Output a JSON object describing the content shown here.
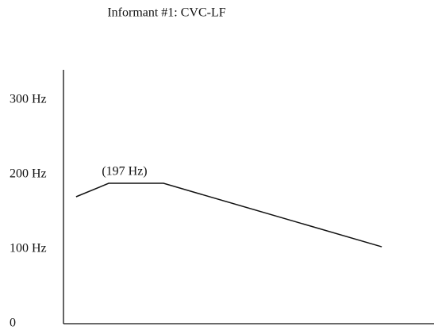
{
  "chart_data": {
    "type": "line",
    "title": "Informant #1: CVC-LF",
    "x": [
      3.4,
      12.2,
      27,
      85.9
    ],
    "xlim": [
      0,
      100
    ],
    "values": [
      170,
      188,
      188,
      103
    ],
    "color": "#111111",
    "ylim": [
      0,
      340
    ],
    "yticks": [
      0,
      {
        "value": 100,
        "label": "100 Hz"
      },
      {
        "value": 200,
        "label": "200 Hz"
      },
      {
        "value": 300,
        "label": "300 Hz"
      }
    ],
    "annotation": "(197 Hz)",
    "grid": false
  }
}
